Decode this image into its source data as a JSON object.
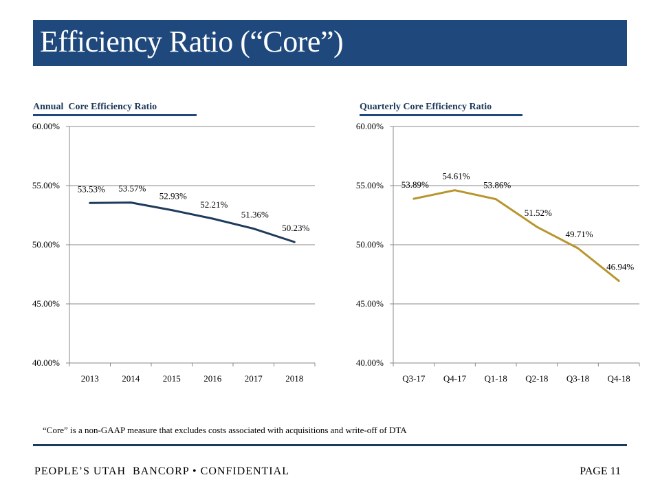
{
  "header": {
    "title": "Efficiency Ratio (“Core”)"
  },
  "colors": {
    "brand_navy": "#1f497d",
    "annual_line": "#1f3b5c",
    "quarterly_line": "#b8962e",
    "grid": "#888888"
  },
  "chart_data": [
    {
      "type": "line",
      "title": "Annual  Core Efficiency Ratio",
      "xlabel": "",
      "ylabel": "",
      "categories": [
        "2013",
        "2014",
        "2015",
        "2016",
        "2017",
        "2018"
      ],
      "series": [
        {
          "name": "Annual Core Efficiency Ratio",
          "values": [
            53.53,
            53.57,
            52.93,
            52.21,
            51.36,
            50.23
          ],
          "color": "#1f3b5c"
        }
      ],
      "data_labels": [
        "53.53%",
        "53.57%",
        "52.93%",
        "52.21%",
        "51.36%",
        "50.23%"
      ],
      "ylim": [
        40,
        60
      ],
      "yticks": [
        40,
        45,
        50,
        55,
        60
      ],
      "ytick_labels": [
        "40.00%",
        "45.00%",
        "50.00%",
        "55.00%",
        "60.00%"
      ],
      "grid": true,
      "legend": "none"
    },
    {
      "type": "line",
      "title": "Quarterly Core Efficiency Ratio",
      "xlabel": "",
      "ylabel": "",
      "categories": [
        "Q3-17",
        "Q4-17",
        "Q1-18",
        "Q2-18",
        "Q3-18",
        "Q4-18"
      ],
      "series": [
        {
          "name": "Quarterly Core Efficiency Ratio",
          "values": [
            53.89,
            54.61,
            53.86,
            51.52,
            49.71,
            46.94
          ],
          "color": "#b8962e"
        }
      ],
      "data_labels": [
        "53.89%",
        "54.61%",
        "53.86%",
        "51.52%",
        "49.71%",
        "46.94%"
      ],
      "ylim": [
        40,
        60
      ],
      "yticks": [
        40,
        45,
        50,
        55,
        60
      ],
      "ytick_labels": [
        "40.00%",
        "45.00%",
        "50.00%",
        "55.00%",
        "60.00%"
      ],
      "grid": true,
      "legend": "none"
    }
  ],
  "footnote": "“Core” is a non-GAAP measure that excludes costs associated with acquisitions and write-off of DTA",
  "footer": {
    "left": "PEOPLE’S UTAH  BANCORP • CONFIDENTIAL",
    "right": "PAGE 11"
  }
}
